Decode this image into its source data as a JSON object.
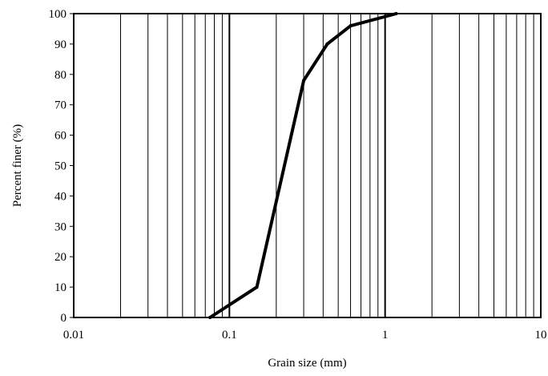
{
  "chart_data": {
    "type": "line",
    "xlabel": "Grain size (mm)",
    "ylabel": "Percent finer (%)",
    "x_scale": "log",
    "xlim": [
      0.01,
      10
    ],
    "ylim": [
      0,
      100
    ],
    "x_ticks": [
      {
        "value": 0.01,
        "label": "0.01"
      },
      {
        "value": 0.1,
        "label": "0.1"
      },
      {
        "value": 1,
        "label": "1"
      },
      {
        "value": 10,
        "label": "10"
      }
    ],
    "y_ticks": [
      {
        "value": 0,
        "label": "0"
      },
      {
        "value": 10,
        "label": "10"
      },
      {
        "value": 20,
        "label": "20"
      },
      {
        "value": 30,
        "label": "30"
      },
      {
        "value": 40,
        "label": "40"
      },
      {
        "value": 50,
        "label": "50"
      },
      {
        "value": 60,
        "label": "60"
      },
      {
        "value": 70,
        "label": "70"
      },
      {
        "value": 80,
        "label": "80"
      },
      {
        "value": 90,
        "label": "90"
      },
      {
        "value": 100,
        "label": "100"
      }
    ],
    "grid": "vertical minor log gridlines",
    "series": [
      {
        "x": [
          0.075,
          0.15,
          0.3,
          0.425,
          0.6,
          1.18
        ],
        "y": [
          0,
          10,
          78,
          90,
          96,
          100
        ]
      }
    ],
    "line_color": "#000000"
  }
}
